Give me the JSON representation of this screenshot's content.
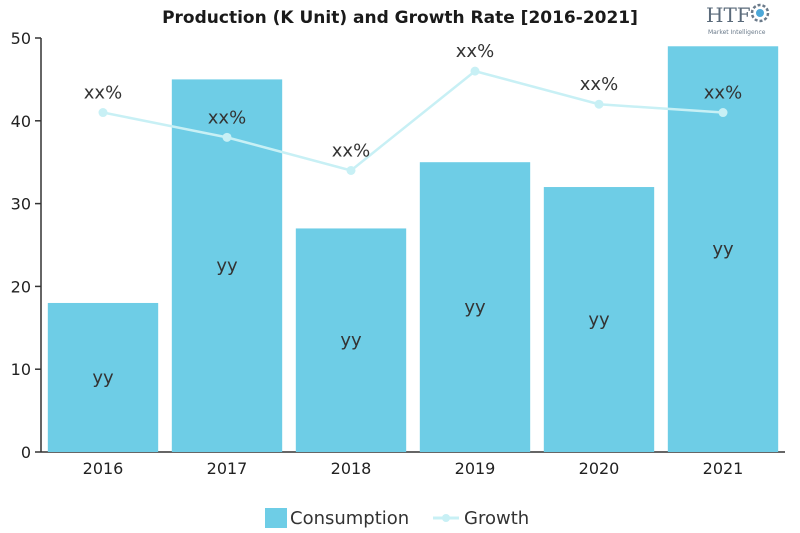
{
  "chart_data": {
    "type": "bar",
    "title": "Production (K Unit) and Growth Rate [2016-2021]",
    "categories": [
      "2016",
      "2017",
      "2018",
      "2019",
      "2020",
      "2021"
    ],
    "series": [
      {
        "name": "Consumption",
        "kind": "bar",
        "values": [
          18,
          45,
          27,
          35,
          32,
          49
        ],
        "labels": [
          "yy",
          "yy",
          "yy",
          "yy",
          "yy",
          "yy"
        ],
        "color": "#6ecde6"
      },
      {
        "name": "Growth",
        "kind": "line",
        "values": [
          41,
          38,
          34,
          46,
          42,
          41
        ],
        "labels": [
          "xx%",
          "xx%",
          "xx%",
          "xx%",
          "xx%",
          "xx%"
        ],
        "color": "#c8f0f5"
      }
    ],
    "ylim": [
      0,
      50
    ],
    "yticks": [
      0,
      10,
      20,
      30,
      40,
      50
    ],
    "grid": false,
    "legend_position": "bottom-center"
  },
  "logo": {
    "text": "HTF",
    "subtext": "Market Intelligence"
  }
}
